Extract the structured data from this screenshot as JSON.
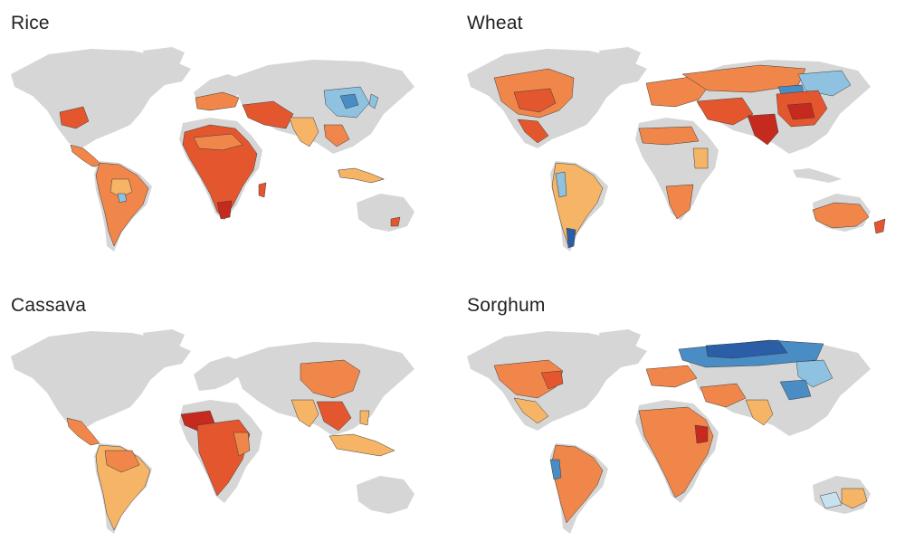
{
  "panels": [
    {
      "id": "rice",
      "title": "Rice"
    },
    {
      "id": "wheat",
      "title": "Wheat"
    },
    {
      "id": "cassava",
      "title": "Cassava"
    },
    {
      "id": "sorghum",
      "title": "Sorghum"
    }
  ],
  "colors": {
    "land": "#d6d6d6",
    "border": "#3c3c3c",
    "scale": [
      "#c62a1e",
      "#e4572e",
      "#f0864a",
      "#f5b466",
      "#fde3a0",
      "#c7e2ee",
      "#8ec2e0",
      "#4a8cc4",
      "#2a5fa8"
    ]
  }
}
